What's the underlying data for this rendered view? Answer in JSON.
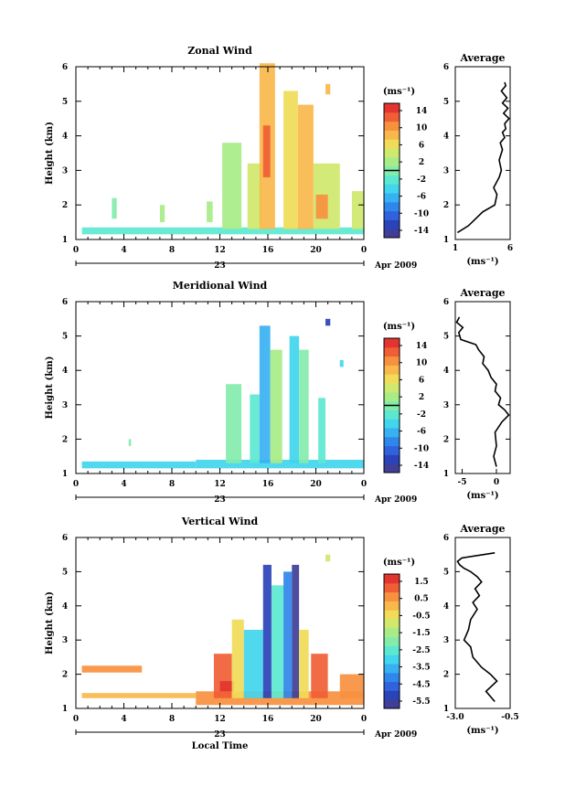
{
  "figure": {
    "colors": {
      "colorbar": [
        "#3f3f99",
        "#2a43b8",
        "#2f62dc",
        "#2f87ec",
        "#38b1f2",
        "#41d5ee",
        "#5ce8d0",
        "#83ecab",
        "#a8ec88",
        "#cfe86e",
        "#f0dc58",
        "#f8b84b",
        "#f7903f",
        "#f05e35",
        "#e33530"
      ]
    }
  },
  "chart_data": [
    {
      "type": "heatmap",
      "title": "Zonal Wind",
      "ylabel": "Height (km)",
      "xlabel": "",
      "xlim": [
        0,
        24
      ],
      "ylim": [
        1,
        6
      ],
      "x_ticks": [
        "0",
        "4",
        "8",
        "12",
        "16",
        "20",
        "0"
      ],
      "y_ticks": [
        "1",
        "2",
        "3",
        "4",
        "5",
        "6"
      ],
      "date_axis": {
        "day_label": "23",
        "month_label": "Apr 2009"
      },
      "colorbar": {
        "unit": "(ms⁻¹)",
        "ticks": [
          "14",
          "10",
          "6",
          "2",
          "-2",
          "-6",
          "-10",
          "-14"
        ],
        "zero_line": true
      },
      "x_coverage_note": "",
      "patches": [
        {
          "x": [
            0.5,
            24
          ],
          "y": [
            1.15,
            1.35
          ],
          "value": -1
        },
        {
          "x": [
            12.2,
            13.8
          ],
          "y": [
            1.3,
            3.8
          ],
          "value": 1
        },
        {
          "x": [
            14.3,
            15.5
          ],
          "y": [
            1.3,
            3.2
          ],
          "value": 3
        },
        {
          "x": [
            15.3,
            16.6
          ],
          "y": [
            1.3,
            6.1
          ],
          "value": 8
        },
        {
          "x": [
            15.6,
            16.2
          ],
          "y": [
            2.8,
            4.3
          ],
          "value": 11
        },
        {
          "x": [
            17.3,
            18.5
          ],
          "y": [
            1.3,
            5.3
          ],
          "value": 6
        },
        {
          "x": [
            18.5,
            19.8
          ],
          "y": [
            1.3,
            4.9
          ],
          "value": 7
        },
        {
          "x": [
            19.8,
            22.0
          ],
          "y": [
            1.3,
            3.2
          ],
          "value": 4
        },
        {
          "x": [
            20.0,
            21.0
          ],
          "y": [
            1.6,
            2.3
          ],
          "value": 9
        },
        {
          "x": [
            23.0,
            24.0
          ],
          "y": [
            1.3,
            2.4
          ],
          "value": 3
        },
        {
          "x": [
            20.8,
            21.2
          ],
          "y": [
            5.2,
            5.5
          ],
          "value": 8
        },
        {
          "x": [
            3.0,
            3.4
          ],
          "y": [
            1.6,
            2.2
          ],
          "value": 0
        },
        {
          "x": [
            7.0,
            7.4
          ],
          "y": [
            1.5,
            2.0
          ],
          "value": 1
        },
        {
          "x": [
            10.9,
            11.4
          ],
          "y": [
            1.5,
            2.1
          ],
          "value": 2
        }
      ],
      "profile": {
        "title": "Average",
        "xlabel": "(ms⁻¹)",
        "xlim": [
          1,
          6
        ],
        "ylim": [
          1,
          6
        ],
        "x_ticks": [
          "1",
          "6"
        ],
        "y_ticks": [
          "1",
          "2",
          "3",
          "4",
          "5",
          "6"
        ],
        "x": [
          1.2,
          2.2,
          3.5,
          4.6,
          4.8,
          4.5,
          5.0,
          5.2,
          5.0,
          5.3,
          5.1,
          5.5,
          5.3,
          5.6,
          5.5,
          5.9,
          5.4,
          5.8,
          5.3,
          5.7,
          5.2,
          5.6,
          5.5
        ],
        "y": [
          1.2,
          1.4,
          1.8,
          2.0,
          2.3,
          2.5,
          2.8,
          3.0,
          3.3,
          3.6,
          3.8,
          3.95,
          4.1,
          4.2,
          4.35,
          4.5,
          4.65,
          4.8,
          4.95,
          5.1,
          5.3,
          5.45,
          5.55
        ]
      }
    },
    {
      "type": "heatmap",
      "title": "Meridional Wind",
      "ylabel": "Height (km)",
      "xlabel": "",
      "xlim": [
        0,
        24
      ],
      "ylim": [
        1,
        6
      ],
      "x_ticks": [
        "0",
        "4",
        "8",
        "12",
        "16",
        "20",
        "0"
      ],
      "y_ticks": [
        "1",
        "2",
        "3",
        "4",
        "5",
        "6"
      ],
      "date_axis": {
        "day_label": "23",
        "month_label": "Apr 2009"
      },
      "colorbar": {
        "unit": "(ms⁻¹)",
        "ticks": [
          "14",
          "10",
          "6",
          "2",
          "-2",
          "-6",
          "-10",
          "-14"
        ],
        "zero_line": true
      },
      "patches": [
        {
          "x": [
            0.5,
            10.0
          ],
          "y": [
            1.15,
            1.35
          ],
          "value": -4
        },
        {
          "x": [
            10.0,
            24.0
          ],
          "y": [
            1.15,
            1.4
          ],
          "value": -3
        },
        {
          "x": [
            12.5,
            13.8
          ],
          "y": [
            1.3,
            3.6
          ],
          "value": 0
        },
        {
          "x": [
            14.5,
            15.3
          ],
          "y": [
            1.3,
            3.3
          ],
          "value": -1
        },
        {
          "x": [
            15.3,
            16.2
          ],
          "y": [
            1.3,
            5.3
          ],
          "value": -5
        },
        {
          "x": [
            16.2,
            17.2
          ],
          "y": [
            1.3,
            4.6
          ],
          "value": 1
        },
        {
          "x": [
            17.8,
            18.6
          ],
          "y": [
            1.3,
            5.0
          ],
          "value": -4
        },
        {
          "x": [
            18.6,
            19.4
          ],
          "y": [
            1.3,
            4.6
          ],
          "value": 0
        },
        {
          "x": [
            20.2,
            20.8
          ],
          "y": [
            1.3,
            3.2
          ],
          "value": -1
        },
        {
          "x": [
            20.8,
            21.2
          ],
          "y": [
            5.3,
            5.5
          ],
          "value": -11
        },
        {
          "x": [
            22.0,
            22.3
          ],
          "y": [
            4.1,
            4.3
          ],
          "value": -3
        },
        {
          "x": [
            4.4,
            4.6
          ],
          "y": [
            1.8,
            2.0
          ],
          "value": 0
        }
      ],
      "profile": {
        "title": "Average",
        "xlabel": "(ms⁻¹)",
        "xlim": [
          -6,
          2
        ],
        "ylim": [
          1,
          6
        ],
        "x_ticks": [
          "-5",
          "0"
        ],
        "y_ticks": [
          "1",
          "2",
          "3",
          "4",
          "5",
          "6"
        ],
        "x": [
          0.0,
          -0.4,
          0.0,
          -0.2,
          0.8,
          1.8,
          1.2,
          0.3,
          0.6,
          -0.2,
          0.0,
          -0.8,
          -1.2,
          -2.0,
          -1.8,
          -2.6,
          -3.0,
          -5.2,
          -5.5,
          -4.9,
          -5.8,
          -5.4
        ],
        "y": [
          1.2,
          1.5,
          1.8,
          2.2,
          2.5,
          2.7,
          2.85,
          3.0,
          3.2,
          3.4,
          3.6,
          3.8,
          4.0,
          4.2,
          4.4,
          4.6,
          4.75,
          4.9,
          5.1,
          5.25,
          5.4,
          5.55
        ]
      }
    },
    {
      "type": "heatmap",
      "title": "Vertical Wind",
      "ylabel": "Height (km)",
      "xlabel": "Local Time",
      "xlim": [
        0,
        24
      ],
      "ylim": [
        1,
        6
      ],
      "x_ticks": [
        "0",
        "4",
        "8",
        "12",
        "16",
        "20",
        "0"
      ],
      "y_ticks": [
        "1",
        "2",
        "3",
        "4",
        "5",
        "6"
      ],
      "date_axis": {
        "day_label": "23",
        "month_label": "Apr 2009"
      },
      "colorbar": {
        "unit": "(ms⁻¹)",
        "ticks": [
          "1.5",
          "0.5",
          "-0.5",
          "-1.5",
          "-2.5",
          "-3.5",
          "-4.5",
          "-5.5"
        ],
        "zero_line": false
      },
      "patches": [
        {
          "x": [
            0.5,
            5.5
          ],
          "y": [
            2.05,
            2.25
          ],
          "value": 0.5
        },
        {
          "x": [
            0.5,
            10.0
          ],
          "y": [
            1.3,
            1.45
          ],
          "value": 0.0
        },
        {
          "x": [
            10.0,
            24.0
          ],
          "y": [
            1.1,
            1.5
          ],
          "value": 0.3
        },
        {
          "x": [
            11.5,
            13.0
          ],
          "y": [
            1.3,
            2.6
          ],
          "value": 0.8
        },
        {
          "x": [
            12.0,
            13.2
          ],
          "y": [
            1.5,
            1.8
          ],
          "value": 1.2
        },
        {
          "x": [
            13.0,
            14.0
          ],
          "y": [
            1.3,
            3.6
          ],
          "value": -0.8
        },
        {
          "x": [
            14.0,
            15.6
          ],
          "y": [
            1.3,
            3.3
          ],
          "value": -2.8
        },
        {
          "x": [
            15.6,
            16.3
          ],
          "y": [
            1.3,
            5.2
          ],
          "value": -5.0
        },
        {
          "x": [
            16.3,
            17.3
          ],
          "y": [
            1.3,
            4.6
          ],
          "value": -2.5
        },
        {
          "x": [
            17.3,
            18.0
          ],
          "y": [
            1.3,
            5.0
          ],
          "value": -4.0
        },
        {
          "x": [
            18.0,
            18.6
          ],
          "y": [
            1.3,
            5.2
          ],
          "value": -5.5
        },
        {
          "x": [
            18.6,
            19.4
          ],
          "y": [
            1.3,
            3.3
          ],
          "value": -0.5
        },
        {
          "x": [
            19.6,
            21.0
          ],
          "y": [
            1.3,
            2.6
          ],
          "value": 0.6
        },
        {
          "x": [
            20.8,
            21.2
          ],
          "y": [
            5.3,
            5.5
          ],
          "value": -1.2
        },
        {
          "x": [
            22.0,
            24.0
          ],
          "y": [
            1.3,
            2.0
          ],
          "value": 0.4
        }
      ],
      "profile": {
        "title": "Average",
        "xlabel": "(ms⁻¹)",
        "xlim": [
          -3.0,
          -0.5
        ],
        "ylim": [
          1,
          6
        ],
        "x_ticks": [
          "-3.0",
          "-0.5"
        ],
        "y_ticks": [
          "1",
          "2",
          "3",
          "4",
          "5",
          "6"
        ],
        "x": [
          -1.2,
          -1.6,
          -1.1,
          -1.4,
          -1.8,
          -2.2,
          -2.3,
          -2.6,
          -2.4,
          -2.3,
          -2.0,
          -2.2,
          -1.9,
          -2.1,
          -1.8,
          -2.0,
          -2.3,
          -2.6,
          -2.8,
          -2.9,
          -2.7,
          -1.2
        ],
        "y": [
          1.2,
          1.5,
          1.8,
          2.0,
          2.2,
          2.5,
          2.8,
          3.0,
          3.3,
          3.6,
          3.9,
          4.1,
          4.3,
          4.5,
          4.7,
          4.85,
          5.0,
          5.1,
          5.2,
          5.3,
          5.4,
          5.55
        ]
      }
    }
  ]
}
